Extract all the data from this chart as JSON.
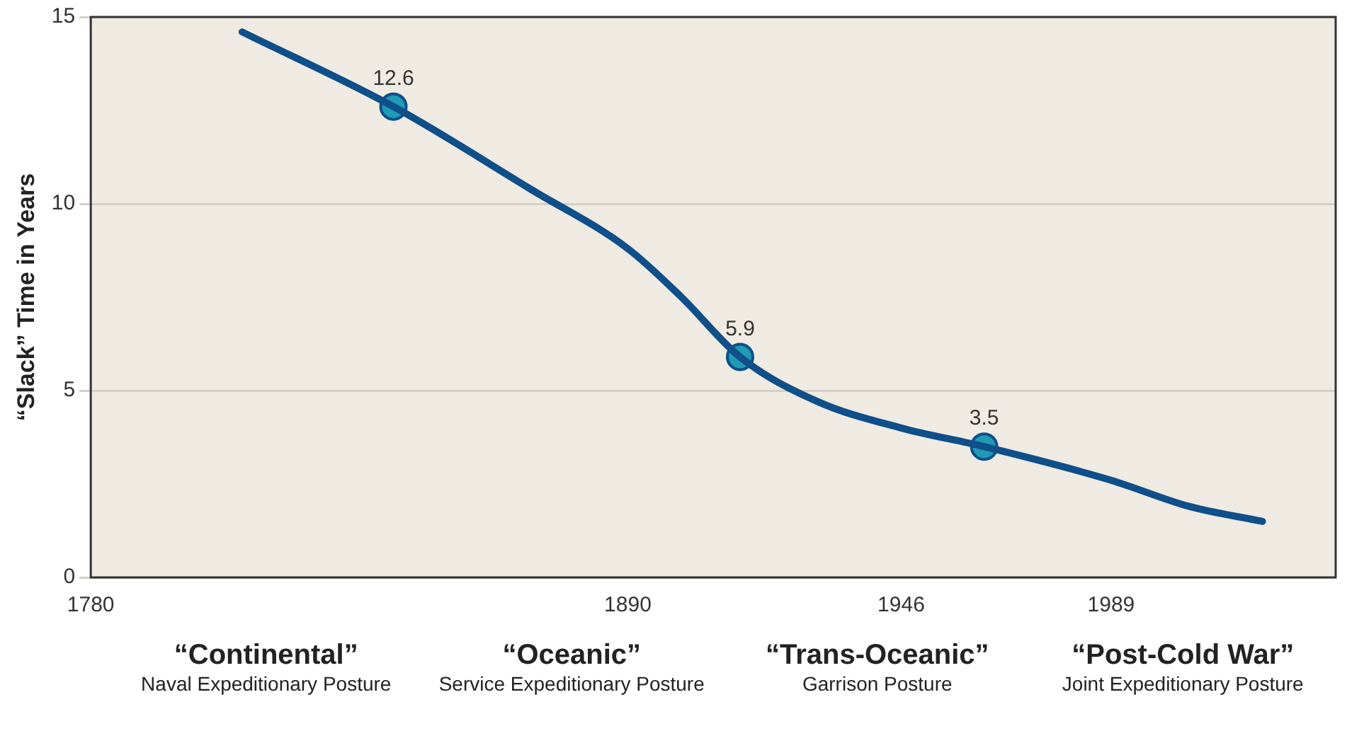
{
  "chart_data": {
    "type": "line",
    "ylabel": "“Slack” Time in Years",
    "xlim": [
      1780,
      2035
    ],
    "xticks": [
      1780,
      1890,
      1946,
      1989
    ],
    "ylim": [
      0,
      15
    ],
    "yticks": [
      0,
      5,
      10,
      15
    ],
    "grid": "y",
    "legend": false,
    "series": [
      {
        "color": "#0f4f8a",
        "marker": "none",
        "x": [
          1811,
          1842,
          1870,
          1890,
          1901,
          1913,
          1929,
          1946,
          1963,
          1989,
          2005,
          2020
        ],
        "values": [
          14.6,
          12.6,
          10.4,
          8.8,
          7.5,
          5.9,
          4.7,
          4.0,
          3.5,
          2.6,
          1.9,
          1.5
        ]
      },
      {
        "type": "scatter",
        "color": "#1f9bb5",
        "marker": "circle",
        "x": [
          1842,
          1913,
          1963
        ],
        "values": [
          12.6,
          5.9,
          3.5
        ],
        "value_labels": [
          "12.6",
          "5.9",
          "3.5"
        ]
      }
    ],
    "annotations": [
      "“Continental”",
      "Naval Expeditionary Posture",
      "“Oceanic”",
      "Service Expeditionary Posture",
      "“Trans-Oceanic”",
      "Garrison Posture",
      "“Post-Cold War”",
      "Joint Expeditionary Posture"
    ]
  }
}
